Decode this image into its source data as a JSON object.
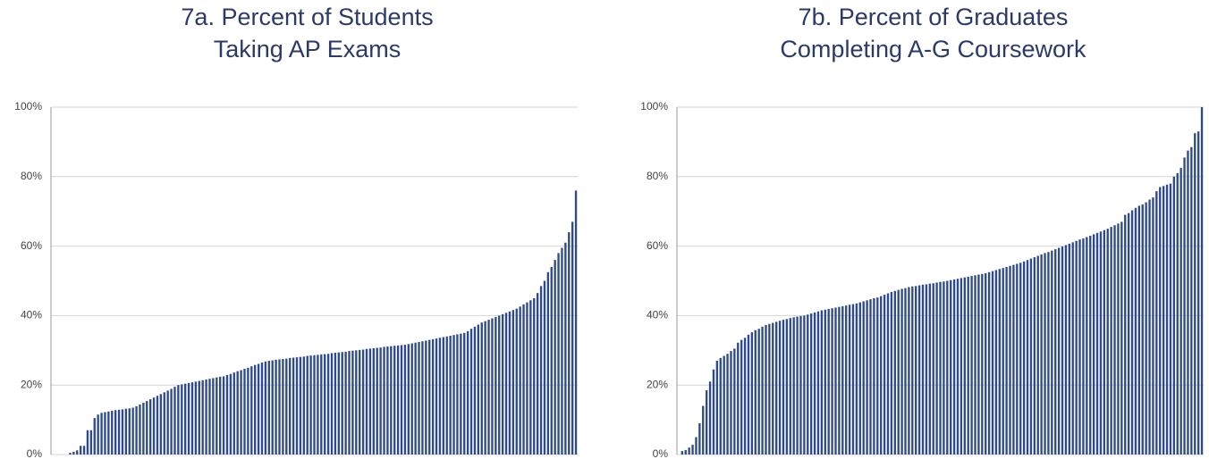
{
  "chart_data": [
    {
      "type": "bar",
      "title": [
        "7a. Percent of Students",
        "Taking AP Exams"
      ],
      "color": "#2e4a8b",
      "grid": true,
      "ylim": [
        0,
        100
      ],
      "yticks": [
        {
          "value": 0,
          "label": "0%"
        },
        {
          "value": 20,
          "label": "20%"
        },
        {
          "value": 40,
          "label": "40%"
        },
        {
          "value": 60,
          "label": "60%"
        },
        {
          "value": 80,
          "label": "80%"
        },
        {
          "value": 100,
          "label": "100%"
        }
      ],
      "values": [
        0,
        0,
        0,
        0,
        0,
        0.5,
        0.8,
        1.2,
        2.5,
        2.5,
        7,
        7,
        10.5,
        11.5,
        12,
        12.2,
        12.4,
        12.6,
        12.8,
        12.9,
        13,
        13.2,
        13.3,
        13.5,
        13.9,
        14.4,
        14.9,
        15.4,
        15.9,
        16.4,
        16.9,
        17.4,
        17.9,
        18.4,
        18.9,
        19.5,
        20,
        20.2,
        20.4,
        20.6,
        20.8,
        21,
        21.2,
        21.4,
        21.6,
        21.8,
        22,
        22.2,
        22.4,
        22.5,
        22.9,
        23.2,
        23.6,
        24,
        24.3,
        24.7,
        25,
        25.4,
        25.8,
        26.1,
        26.5,
        26.8,
        27,
        27.1,
        27.3,
        27.4,
        27.5,
        27.6,
        27.8,
        27.9,
        28,
        28.1,
        28.2,
        28.4,
        28.5,
        28.6,
        28.7,
        28.8,
        28.9,
        29,
        29.2,
        29.3,
        29.4,
        29.5,
        29.6,
        29.8,
        29.9,
        30,
        30.1,
        30.2,
        30.4,
        30.5,
        30.6,
        30.7,
        30.8,
        31,
        31.1,
        31.2,
        31.3,
        31.4,
        31.5,
        31.6,
        31.8,
        32,
        32.2,
        32.4,
        32.6,
        32.8,
        33,
        33.2,
        33.4,
        33.6,
        33.8,
        34,
        34.2,
        34.4,
        34.6,
        34.8,
        35,
        35.5,
        36.2,
        36.8,
        37.4,
        38,
        38.4,
        38.8,
        39.2,
        39.6,
        40,
        40.4,
        40.8,
        41.2,
        41.6,
        42,
        42.6,
        43.2,
        43.8,
        44.4,
        45,
        46.5,
        48.5,
        50,
        52.5,
        54,
        56,
        58,
        59.5,
        61,
        64,
        67,
        76
      ]
    },
    {
      "type": "bar",
      "title": [
        "7b. Percent of Graduates",
        "Completing A-G Coursework"
      ],
      "color": "#2e4a8b",
      "grid": true,
      "ylim": [
        0,
        100
      ],
      "yticks": [
        {
          "value": 0,
          "label": "0%"
        },
        {
          "value": 20,
          "label": "20%"
        },
        {
          "value": 40,
          "label": "40%"
        },
        {
          "value": 60,
          "label": "60%"
        },
        {
          "value": 80,
          "label": "80%"
        },
        {
          "value": 100,
          "label": "100%"
        }
      ],
      "values": [
        0,
        1,
        1.3,
        2,
        2.8,
        5,
        9,
        14,
        18.5,
        21,
        24.5,
        27,
        27.8,
        28.4,
        29,
        29.8,
        30.5,
        32.2,
        33,
        33.6,
        34.5,
        35.2,
        35.8,
        36.2,
        36.8,
        37.3,
        37.6,
        37.9,
        38.2,
        38.5,
        38.8,
        39,
        39.3,
        39.5,
        39.7,
        39.9,
        40,
        40.3,
        40.6,
        40.9,
        41.2,
        41.5,
        41.7,
        41.9,
        42.1,
        42.3,
        42.5,
        42.7,
        42.9,
        43.1,
        43.3,
        43.5,
        43.8,
        44.1,
        44.4,
        44.7,
        45,
        45.2,
        45.6,
        46,
        46.4,
        46.8,
        47.1,
        47.4,
        47.7,
        47.9,
        48.2,
        48.4,
        48.5,
        48.7,
        48.9,
        49,
        49.2,
        49.3,
        49.5,
        49.7,
        49.8,
        50,
        50.2,
        50.4,
        50.6,
        50.8,
        51,
        51.2,
        51.4,
        51.6,
        51.8,
        52,
        52.2,
        52.5,
        52.8,
        53.1,
        53.4,
        53.7,
        54,
        54.3,
        54.6,
        54.9,
        55.2,
        55.6,
        56,
        56.4,
        56.8,
        57.2,
        57.6,
        58,
        58.3,
        58.7,
        59.1,
        59.5,
        59.9,
        60.3,
        60.7,
        61.1,
        61.5,
        61.9,
        62.2,
        62.6,
        63,
        63.4,
        63.8,
        64.2,
        64.6,
        65,
        65.5,
        66,
        66.5,
        67,
        69,
        69.5,
        70.3,
        71,
        71.6,
        72,
        72.6,
        73.4,
        74,
        75.8,
        77,
        77.3,
        77.7,
        78,
        80,
        81,
        82.5,
        85.5,
        87.5,
        88.5,
        92.5,
        93,
        100
      ]
    }
  ]
}
